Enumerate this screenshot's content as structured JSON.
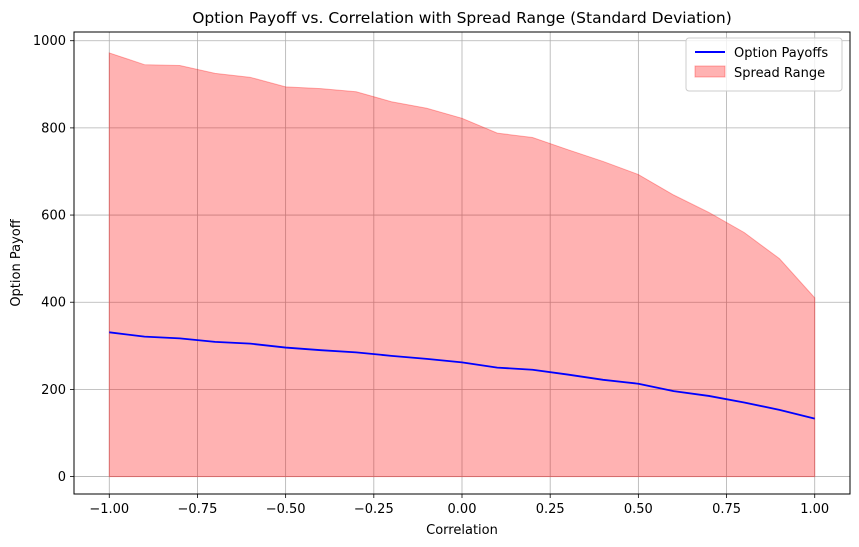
{
  "chart_data": {
    "type": "area",
    "title": "Option Payoff vs. Correlation with Spread Range (Standard Deviation)",
    "xlabel": "Correlation",
    "ylabel": "Option Payoff",
    "xlim": [
      -1.1,
      1.1
    ],
    "ylim": [
      -40,
      1020
    ],
    "xticks": [
      -1.0,
      -0.75,
      -0.5,
      -0.25,
      0.0,
      0.25,
      0.5,
      0.75,
      1.0
    ],
    "xtick_labels": [
      "−1.00",
      "−0.75",
      "−0.50",
      "−0.25",
      "0.00",
      "0.25",
      "0.50",
      "0.75",
      "1.00"
    ],
    "yticks": [
      0,
      200,
      400,
      600,
      800,
      1000
    ],
    "ytick_labels": [
      "0",
      "200",
      "400",
      "600",
      "800",
      "1000"
    ],
    "grid": true,
    "legend_position": "top-right",
    "x": [
      -1.0,
      -0.9,
      -0.8,
      -0.7,
      -0.6,
      -0.5,
      -0.4,
      -0.3,
      -0.2,
      -0.1,
      0.0,
      0.1,
      0.2,
      0.3,
      0.4,
      0.5,
      0.6,
      0.7,
      0.8,
      0.9,
      1.0
    ],
    "series": [
      {
        "name": "Option Payoffs",
        "kind": "line",
        "color": "#0000ff",
        "values": [
          331,
          321,
          317,
          309,
          305,
          296,
          290,
          285,
          277,
          270,
          262,
          250,
          245,
          234,
          222,
          213,
          196,
          185,
          170,
          153,
          133
        ]
      },
      {
        "name": "Spread Range",
        "kind": "area",
        "color": "#ff0000",
        "opacity": 0.3,
        "lower": [
          0,
          0,
          0,
          0,
          0,
          0,
          0,
          0,
          0,
          0,
          0,
          0,
          0,
          0,
          0,
          0,
          0,
          0,
          0,
          0,
          0
        ],
        "upper": [
          972,
          945,
          943,
          925,
          916,
          894,
          890,
          883,
          860,
          845,
          822,
          788,
          778,
          750,
          723,
          693,
          646,
          606,
          560,
          500,
          410
        ]
      }
    ]
  }
}
